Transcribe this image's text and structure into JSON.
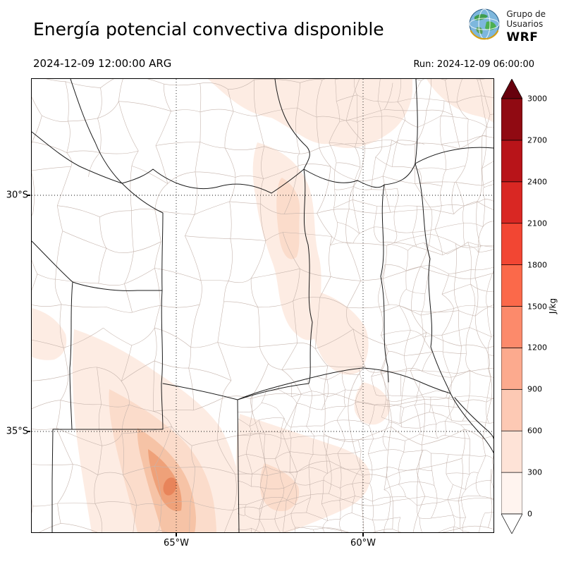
{
  "header": {
    "title": "Energía potencial convectiva disponible",
    "valid_time": "2024-12-09 12:00:00 ARG",
    "run_label": "Run: 2024-12-09 06:00:00",
    "logo": {
      "line1": "Grupo de",
      "line2": "Usuarios",
      "acronym": "WRF"
    }
  },
  "map": {
    "lat_labels": [
      "30°S",
      "35°S"
    ],
    "lon_labels": [
      "65°W",
      "60°W"
    ],
    "fill_colors": {
      "faint": "#fdece3",
      "pale": "#fbdccb",
      "med": "#f6c3a6",
      "core": "#efa179",
      "dot": "#e8845a"
    }
  },
  "colorbar": {
    "unit": "J/kg",
    "ticks": [
      "0",
      "300",
      "600",
      "900",
      "1200",
      "1500",
      "1800",
      "2100",
      "2400",
      "2700",
      "3000"
    ],
    "band_colors": [
      "#fff4ef",
      "#fee3d7",
      "#fdc9b4",
      "#fcaa8e",
      "#fc8a6b",
      "#fb694a",
      "#f24633",
      "#d92723",
      "#b81419",
      "#900a12"
    ],
    "over_color": "#67000d",
    "under_color": "#ffffff"
  },
  "chart_data": {
    "type": "heatmap",
    "title": "Energía potencial convectiva disponible",
    "valid_time": "2024-12-09 12:00:00 ARG",
    "run_time": "2024-12-09 06:00:00",
    "unit": "J/kg",
    "levels": [
      0,
      300,
      600,
      900,
      1200,
      1500,
      1800,
      2100,
      2400,
      2700,
      3000
    ],
    "colormap": "Reds",
    "x_tick_labels": [
      "65°W",
      "60°W"
    ],
    "y_tick_labels": [
      "30°S",
      "35°S"
    ],
    "observed_values": [
      {
        "area": "most of the mapped domain",
        "cape_jkg": "0-300"
      },
      {
        "area": "band across north-center and central corridor",
        "cape_jkg": "0-300"
      },
      {
        "area": "southwest sector (near 35.5°S, 65.5°W)",
        "cape_jkg": "600-900 local maximum"
      },
      {
        "area": "south-central patches",
        "cape_jkg": "0-300"
      }
    ],
    "max_value_estimate_jkg": 900
  }
}
